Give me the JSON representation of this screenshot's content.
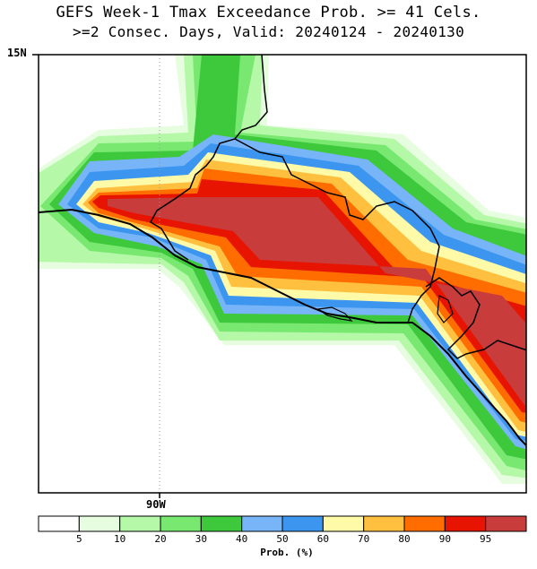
{
  "title": {
    "line1": "GEFS Week-1 Tmax Exceedance Prob. >= 41 Cels.",
    "line2": ">=2 Consec. Days, Valid: 20240124 - 20240130"
  },
  "axes": {
    "lat_label": "15N",
    "lon_label": "90W"
  },
  "colorbar": {
    "title": "Prob. (%)",
    "colors": [
      "#ffffff",
      "#e6fde0",
      "#b4f8a8",
      "#78e870",
      "#3ec83c",
      "#78b4f8",
      "#3c96f0",
      "#fffaa8",
      "#ffc040",
      "#ff6c00",
      "#e61400",
      "#c83c3c"
    ],
    "tick_labels": [
      "5",
      "10",
      "20",
      "30",
      "40",
      "50",
      "60",
      "70",
      "80",
      "90",
      "95"
    ]
  }
}
